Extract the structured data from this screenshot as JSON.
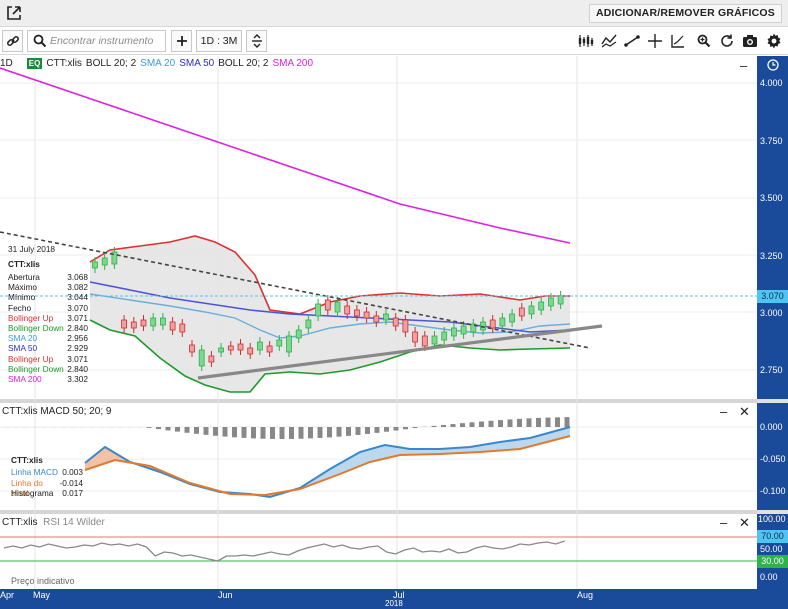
{
  "topbar": {
    "add_remove_label": "ADICIONAR/REMOVER GRÁFICOS"
  },
  "toolbar": {
    "search_placeholder": "Encontrar instrumento",
    "interval_label": "1D : 3M"
  },
  "legend": {
    "period": "1D",
    "badge": "EQ",
    "symbol": "CTT:xlis",
    "items": [
      {
        "label": "BOLL 20; 2",
        "color": "#222222"
      },
      {
        "label": "SMA 20",
        "color": "#3a9bd9"
      },
      {
        "label": "SMA 50",
        "color": "#2c2cc9"
      },
      {
        "label": "BOLL 20; 2",
        "color": "#222222"
      },
      {
        "label": "SMA 200",
        "color": "#e020e0"
      }
    ]
  },
  "tooltip": {
    "date": "31 July 2018",
    "symbol": "CTT:xlis",
    "rows": [
      {
        "label": "Abertura",
        "value": "3.068",
        "color": "#222222"
      },
      {
        "label": "Máximo",
        "value": "3.082",
        "color": "#222222"
      },
      {
        "label": "Mínimo",
        "value": "3.044",
        "color": "#222222"
      },
      {
        "label": "Fecho",
        "value": "3.070",
        "color": "#222222"
      },
      {
        "label": "Bollinger Up",
        "value": "3.071",
        "color": "#e03030"
      },
      {
        "label": "Bollinger Down",
        "value": "2.840",
        "color": "#1d9a2a"
      },
      {
        "label": "SMA 20",
        "value": "2.956",
        "color": "#3a9bd9"
      },
      {
        "label": "SMA 50",
        "value": "2.929",
        "color": "#2c2cc9"
      },
      {
        "label": "Bollinger Up",
        "value": "3.071",
        "color": "#e03030"
      },
      {
        "label": "Bollinger Down",
        "value": "2.840",
        "color": "#1d9a2a"
      },
      {
        "label": "SMA 200",
        "value": "3.302",
        "color": "#e020e0"
      }
    ]
  },
  "macd_panel": {
    "title": "CTT:xlis  MACD 50; 20; 9",
    "symbol": "CTT:xlis",
    "rows": [
      {
        "label": "Linha MACD",
        "value": "0.003",
        "color": "#3a88c9"
      },
      {
        "label": "Linha do sinal",
        "value": "-0.014",
        "color": "#e07a30"
      },
      {
        "label": "Histograma",
        "value": "0.017",
        "color": "#222222"
      }
    ],
    "axis": [
      "0.000",
      "-0.050",
      "-0.100"
    ]
  },
  "rsi_panel": {
    "title": "CTT:xlis",
    "indicator": "RSI 14 Wilder",
    "axis": [
      "100.00",
      "70.00",
      "50.00",
      "30.00",
      "0.00"
    ],
    "note": "Preço indicativo"
  },
  "price_axis": [
    "4.000",
    "3.750",
    "3.500",
    "3.250",
    "3.000",
    "2.750"
  ],
  "current_price": "3.070",
  "date_axis": {
    "labels": [
      "Apr",
      "May",
      "Jun",
      "Jul",
      "Aug"
    ],
    "year": "2018"
  },
  "colors": {
    "panel_bg": "#1a4a9a",
    "bollinger_up": "#e03030",
    "bollinger_down": "#1d9a2a",
    "sma20": "#6aaede",
    "sma50": "#4a55d8",
    "sma200": "#e020e0",
    "candle_up": "#2bb34a",
    "candle_down": "#e04040"
  }
}
